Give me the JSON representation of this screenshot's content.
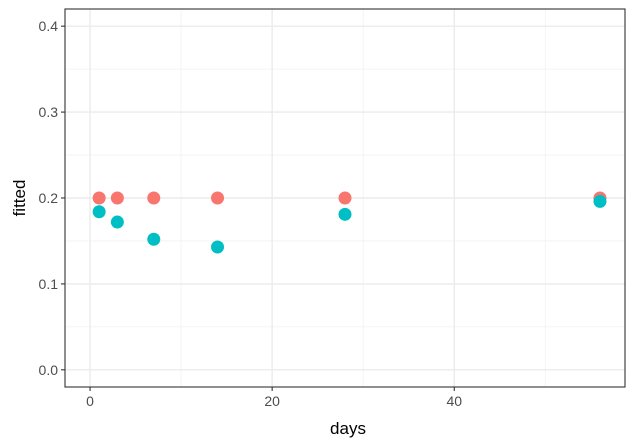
{
  "chart_data": {
    "type": "scatter",
    "title": "",
    "xlabel": "days",
    "ylabel": "fitted",
    "xlim": [
      -2.75,
      58.75
    ],
    "ylim": [
      -0.02,
      0.42
    ],
    "xticks": [
      0,
      20,
      40
    ],
    "yticks": [
      0.0,
      0.1,
      0.2,
      0.3,
      0.4
    ],
    "grid": true,
    "legend": "none",
    "series": [
      {
        "color": "#F8766D",
        "points": [
          {
            "x": 1,
            "y": 0.2
          },
          {
            "x": 3,
            "y": 0.2
          },
          {
            "x": 7,
            "y": 0.2
          },
          {
            "x": 14,
            "y": 0.2
          },
          {
            "x": 28,
            "y": 0.2
          },
          {
            "x": 56,
            "y": 0.2
          }
        ]
      },
      {
        "color": "#00BFC4",
        "points": [
          {
            "x": 1,
            "y": 0.184
          },
          {
            "x": 3,
            "y": 0.172
          },
          {
            "x": 7,
            "y": 0.152
          },
          {
            "x": 14,
            "y": 0.143
          },
          {
            "x": 28,
            "y": 0.181
          },
          {
            "x": 56,
            "y": 0.196
          }
        ]
      }
    ]
  }
}
